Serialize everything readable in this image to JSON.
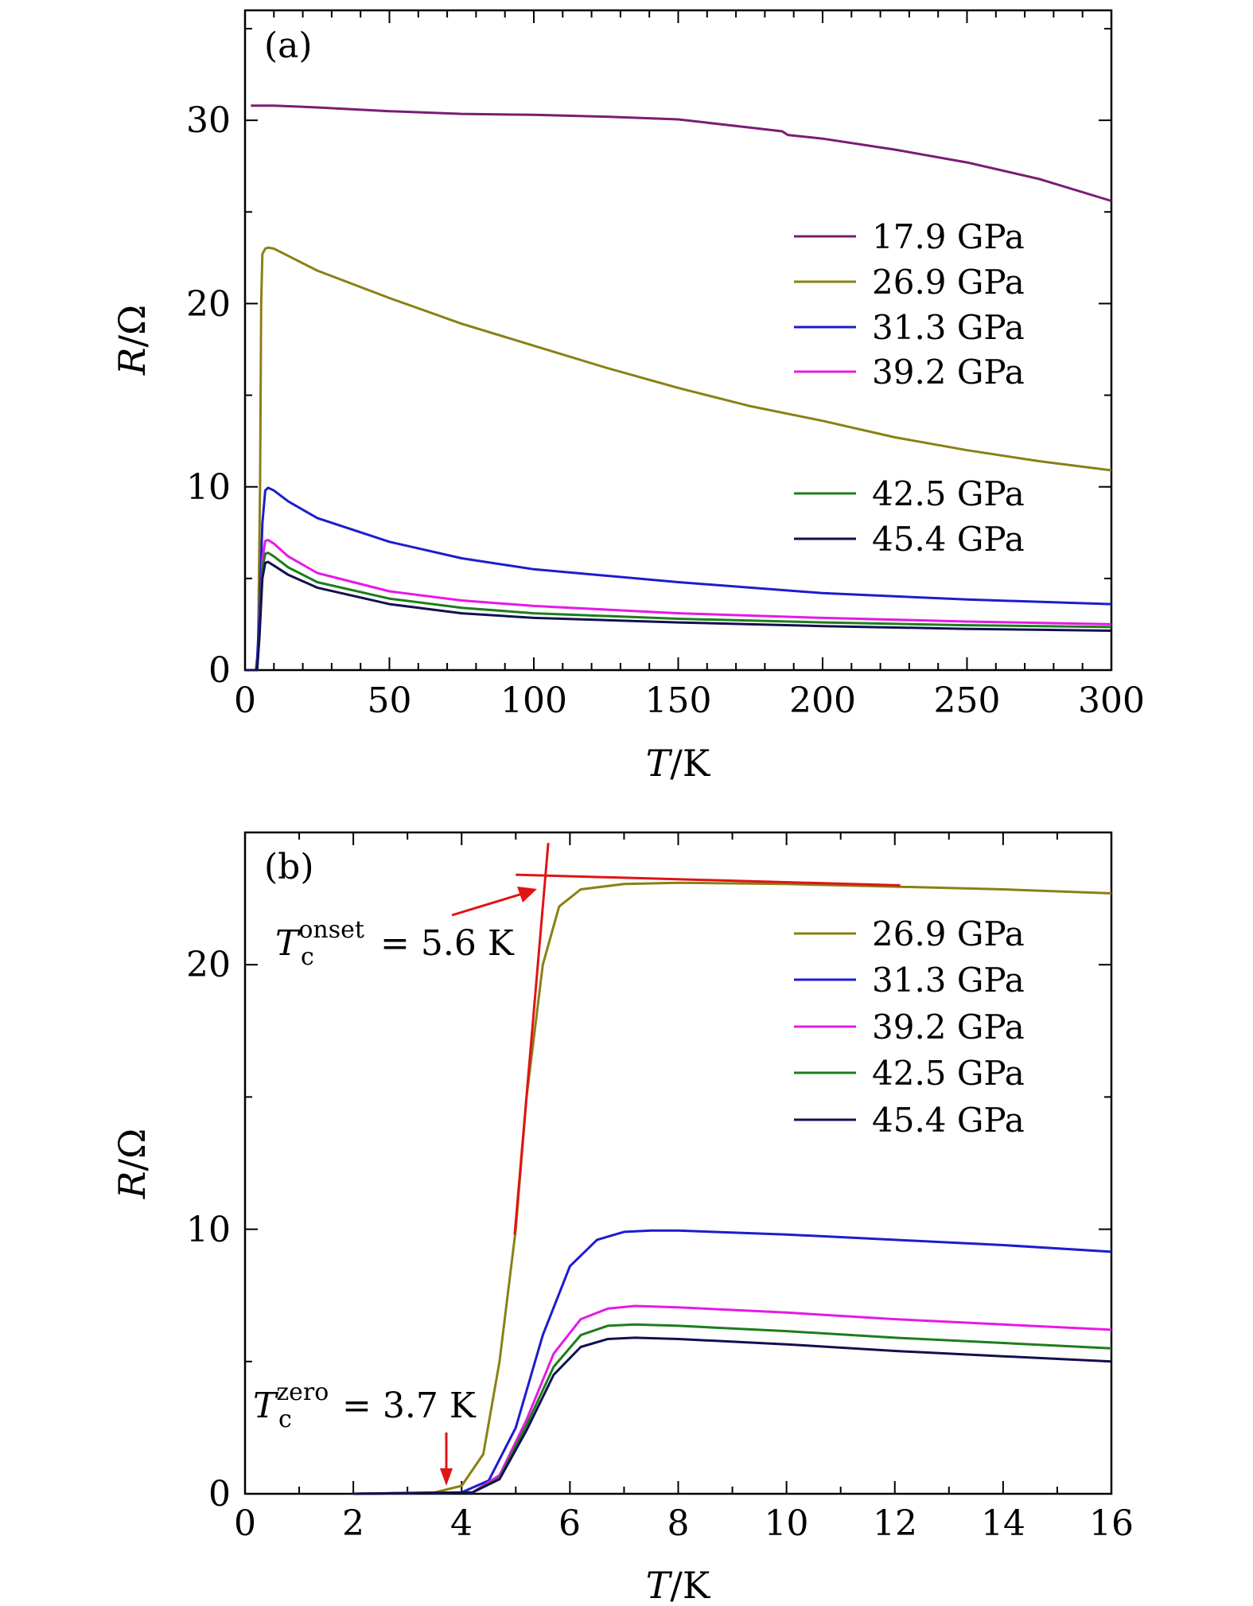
{
  "chart_data": [
    {
      "panel_label": "(a)",
      "type": "line",
      "xlabel": {
        "var": "T",
        "unit": "/K"
      },
      "ylabel": {
        "var": "R",
        "unit": "/Ω"
      },
      "xlim": [
        0,
        300
      ],
      "ylim": [
        0,
        36
      ],
      "xticks": [
        0,
        50,
        100,
        150,
        200,
        250,
        300
      ],
      "xtick_labels": [
        "0",
        "50",
        "100",
        "150",
        "200",
        "250",
        "300"
      ],
      "yticks": [
        0,
        10,
        20,
        30
      ],
      "ytick_labels": [
        "0",
        "10",
        "20",
        "30"
      ],
      "grid": false,
      "legend_position": "right",
      "series": [
        {
          "name": "17.9 GPa",
          "color": "#7b1c73",
          "points": [
            [
              2,
              30.8
            ],
            [
              10,
              30.8
            ],
            [
              25,
              30.7
            ],
            [
              50,
              30.5
            ],
            [
              75,
              30.35
            ],
            [
              100,
              30.3
            ],
            [
              125,
              30.2
            ],
            [
              150,
              30.05
            ],
            [
              175,
              29.6
            ],
            [
              186,
              29.4
            ],
            [
              188,
              29.2
            ],
            [
              200,
              29.0
            ],
            [
              225,
              28.4
            ],
            [
              250,
              27.7
            ],
            [
              275,
              26.8
            ],
            [
              300,
              25.6
            ]
          ]
        },
        {
          "name": "26.9 GPa",
          "color": "#8a8016",
          "points": [
            [
              0,
              0
            ],
            [
              3.7,
              0
            ],
            [
              4.5,
              1
            ],
            [
              5.2,
              10
            ],
            [
              5.6,
              20
            ],
            [
              6,
              22.7
            ],
            [
              7,
              23.0
            ],
            [
              8,
              23.05
            ],
            [
              10,
              23.0
            ],
            [
              15,
              22.6
            ],
            [
              25,
              21.8
            ],
            [
              50,
              20.3
            ],
            [
              75,
              18.9
            ],
            [
              100,
              17.7
            ],
            [
              125,
              16.5
            ],
            [
              150,
              15.4
            ],
            [
              175,
              14.4
            ],
            [
              200,
              13.6
            ],
            [
              225,
              12.7
            ],
            [
              250,
              12.0
            ],
            [
              275,
              11.4
            ],
            [
              300,
              10.9
            ]
          ]
        },
        {
          "name": "31.3 GPa",
          "color": "#1c1ccf",
          "points": [
            [
              0,
              0
            ],
            [
              4,
              0
            ],
            [
              5,
              3
            ],
            [
              6,
              8
            ],
            [
              7,
              9.8
            ],
            [
              8,
              9.95
            ],
            [
              10,
              9.8
            ],
            [
              15,
              9.2
            ],
            [
              25,
              8.3
            ],
            [
              50,
              7.0
            ],
            [
              75,
              6.1
            ],
            [
              100,
              5.5
            ],
            [
              150,
              4.8
            ],
            [
              200,
              4.2
            ],
            [
              250,
              3.85
            ],
            [
              300,
              3.6
            ]
          ]
        },
        {
          "name": "39.2 GPa",
          "color": "#e619e6",
          "points": [
            [
              0,
              0
            ],
            [
              4.2,
              0
            ],
            [
              5,
              2
            ],
            [
              6,
              6
            ],
            [
              7,
              7.05
            ],
            [
              8,
              7.1
            ],
            [
              10,
              6.9
            ],
            [
              15,
              6.2
            ],
            [
              25,
              5.3
            ],
            [
              50,
              4.3
            ],
            [
              75,
              3.8
            ],
            [
              100,
              3.5
            ],
            [
              150,
              3.1
            ],
            [
              200,
              2.85
            ],
            [
              250,
              2.65
            ],
            [
              300,
              2.5
            ]
          ]
        },
        {
          "name": "42.5 GPa",
          "color": "#1d7d1d",
          "points": [
            [
              0,
              0
            ],
            [
              4.2,
              0
            ],
            [
              5,
              2
            ],
            [
              6,
              5.5
            ],
            [
              7,
              6.35
            ],
            [
              8,
              6.4
            ],
            [
              10,
              6.2
            ],
            [
              15,
              5.6
            ],
            [
              25,
              4.8
            ],
            [
              50,
              3.9
            ],
            [
              75,
              3.4
            ],
            [
              100,
              3.1
            ],
            [
              150,
              2.8
            ],
            [
              200,
              2.6
            ],
            [
              250,
              2.45
            ],
            [
              300,
              2.35
            ]
          ]
        },
        {
          "name": "45.4 GPa",
          "color": "#101050",
          "points": [
            [
              0,
              0
            ],
            [
              4.2,
              0
            ],
            [
              5,
              1.8
            ],
            [
              6,
              5
            ],
            [
              7,
              5.85
            ],
            [
              8,
              5.9
            ],
            [
              10,
              5.7
            ],
            [
              15,
              5.2
            ],
            [
              25,
              4.5
            ],
            [
              50,
              3.6
            ],
            [
              75,
              3.1
            ],
            [
              100,
              2.85
            ],
            [
              150,
              2.6
            ],
            [
              200,
              2.4
            ],
            [
              250,
              2.25
            ],
            [
              300,
              2.15
            ]
          ]
        }
      ]
    },
    {
      "panel_label": "(b)",
      "type": "line",
      "xlabel": {
        "var": "T",
        "unit": "/K"
      },
      "ylabel": {
        "var": "R",
        "unit": "/Ω"
      },
      "xlim": [
        0,
        16
      ],
      "ylim": [
        0,
        25
      ],
      "xticks": [
        0,
        2,
        4,
        6,
        8,
        10,
        12,
        14,
        16
      ],
      "xtick_labels": [
        "0",
        "2",
        "4",
        "6",
        "8",
        "10",
        "12",
        "14",
        "16"
      ],
      "yticks": [
        0,
        10,
        20
      ],
      "ytick_labels": [
        "0",
        "10",
        "20"
      ],
      "grid": false,
      "legend_position": "right",
      "series": [
        {
          "name": "26.9 GPa",
          "color": "#8a8016",
          "points": [
            [
              2,
              0
            ],
            [
              3.5,
              0.05
            ],
            [
              4,
              0.3
            ],
            [
              4.4,
              1.5
            ],
            [
              4.7,
              5
            ],
            [
              5,
              10
            ],
            [
              5.2,
              15
            ],
            [
              5.5,
              20
            ],
            [
              5.8,
              22.2
            ],
            [
              6.2,
              22.85
            ],
            [
              7,
              23.05
            ],
            [
              8,
              23.1
            ],
            [
              10,
              23.05
            ],
            [
              12,
              22.95
            ],
            [
              14,
              22.85
            ],
            [
              16,
              22.7
            ]
          ]
        },
        {
          "name": "31.3 GPa",
          "color": "#1c1ccf",
          "points": [
            [
              2,
              0
            ],
            [
              4,
              0.05
            ],
            [
              4.5,
              0.5
            ],
            [
              5,
              2.5
            ],
            [
              5.5,
              6
            ],
            [
              6,
              8.6
            ],
            [
              6.5,
              9.6
            ],
            [
              7,
              9.9
            ],
            [
              7.5,
              9.95
            ],
            [
              8,
              9.95
            ],
            [
              10,
              9.8
            ],
            [
              12,
              9.6
            ],
            [
              14,
              9.4
            ],
            [
              16,
              9.15
            ]
          ]
        },
        {
          "name": "39.2 GPa",
          "color": "#e619e6",
          "points": [
            [
              2,
              0
            ],
            [
              4.2,
              0.05
            ],
            [
              4.7,
              0.7
            ],
            [
              5.2,
              2.8
            ],
            [
              5.7,
              5.3
            ],
            [
              6.2,
              6.6
            ],
            [
              6.7,
              7.0
            ],
            [
              7.2,
              7.1
            ],
            [
              8,
              7.05
            ],
            [
              10,
              6.85
            ],
            [
              12,
              6.6
            ],
            [
              14,
              6.4
            ],
            [
              16,
              6.2
            ]
          ]
        },
        {
          "name": "42.5 GPa",
          "color": "#1d7d1d",
          "points": [
            [
              2,
              0
            ],
            [
              4.2,
              0.05
            ],
            [
              4.7,
              0.6
            ],
            [
              5.2,
              2.6
            ],
            [
              5.7,
              4.8
            ],
            [
              6.2,
              6.0
            ],
            [
              6.7,
              6.35
            ],
            [
              7.2,
              6.4
            ],
            [
              8,
              6.35
            ],
            [
              10,
              6.15
            ],
            [
              12,
              5.9
            ],
            [
              14,
              5.7
            ],
            [
              16,
              5.5
            ]
          ]
        },
        {
          "name": "45.4 GPa",
          "color": "#101050",
          "points": [
            [
              2,
              0
            ],
            [
              4.2,
              0.05
            ],
            [
              4.7,
              0.55
            ],
            [
              5.2,
              2.4
            ],
            [
              5.7,
              4.5
            ],
            [
              6.2,
              5.55
            ],
            [
              6.7,
              5.85
            ],
            [
              7.2,
              5.9
            ],
            [
              8,
              5.85
            ],
            [
              10,
              5.65
            ],
            [
              12,
              5.4
            ],
            [
              14,
              5.2
            ],
            [
              16,
              5.0
            ]
          ]
        }
      ],
      "fit_lines": [
        {
          "color": "#e01414",
          "from": [
            4.98,
            9.8
          ],
          "to": [
            5.6,
            24.6
          ]
        },
        {
          "color": "#e01414",
          "from": [
            5.0,
            23.4
          ],
          "to": [
            12.1,
            23.0
          ]
        }
      ],
      "annotations": [
        {
          "label_main": "T",
          "label_sub": "c",
          "label_sup": "onset",
          "label_value": "= 5.6 K"
        },
        {
          "label_main": "T",
          "label_sub": "c",
          "label_sup": "zero",
          "label_value": "= 3.7 K"
        }
      ]
    }
  ]
}
